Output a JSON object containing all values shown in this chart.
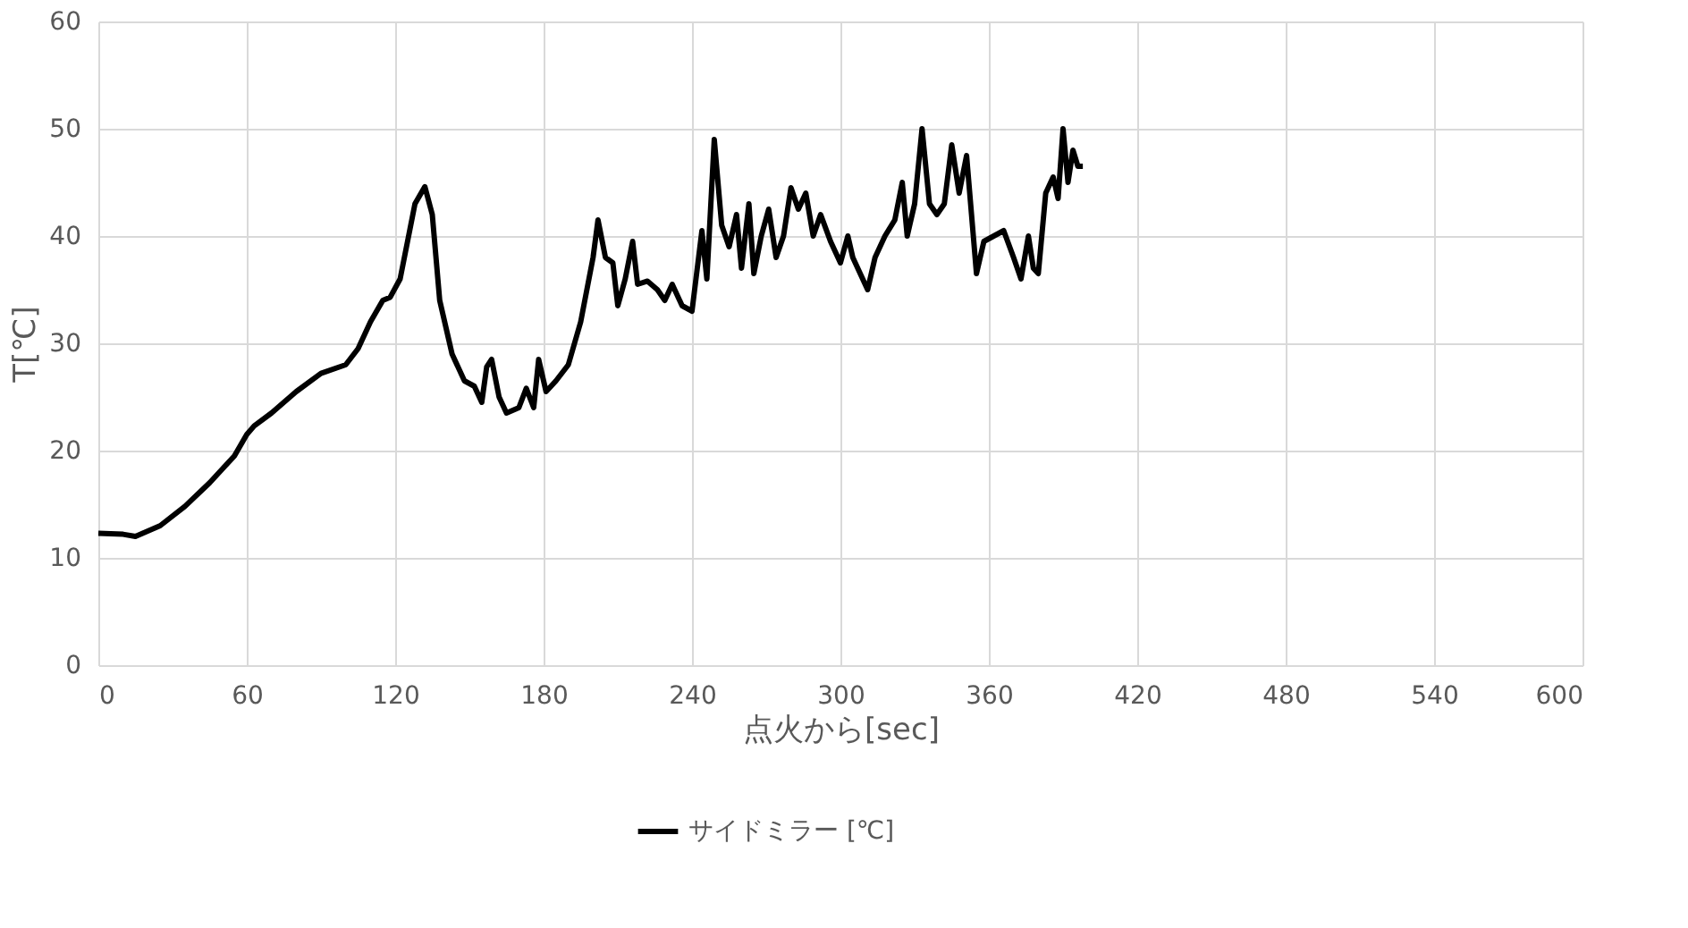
{
  "chart_data": {
    "type": "line",
    "xlabel": "点火から[sec]",
    "ylabel": "T[℃]",
    "xlim": [
      0,
      600
    ],
    "xticks": [
      0,
      60,
      120,
      180,
      240,
      300,
      360,
      420,
      480,
      540,
      600
    ],
    "ylim": [
      0,
      60
    ],
    "yticks": [
      0,
      10,
      20,
      30,
      40,
      50,
      60
    ],
    "grid": true,
    "legend": "bottom",
    "marker": "none",
    "line_style": "solid",
    "series": [
      {
        "name": "サイドミラー [℃]",
        "color": "#000000",
        "x": [
          0,
          10,
          15,
          25,
          35,
          45,
          55,
          60,
          63,
          70,
          80,
          90,
          100,
          105,
          110,
          115,
          118,
          122,
          125,
          128,
          132,
          135,
          138,
          143,
          148,
          152,
          155,
          157,
          159,
          162,
          165,
          170,
          173,
          176,
          178,
          181,
          185,
          190,
          195,
          200,
          202,
          205,
          208,
          210,
          213,
          216,
          218,
          222,
          226,
          229,
          232,
          236,
          240,
          244,
          246,
          249,
          252,
          255,
          258,
          260,
          263,
          265,
          268,
          271,
          274,
          277,
          280,
          283,
          286,
          289,
          292,
          296,
          300,
          303,
          305,
          308,
          311,
          314,
          318,
          322,
          325,
          327,
          330,
          333,
          336,
          339,
          342,
          345,
          348,
          351,
          353,
          355,
          358,
          362,
          366,
          370,
          373,
          376,
          378,
          380,
          383,
          386,
          388,
          390,
          392,
          394,
          396,
          398
        ],
        "values": [
          12.3,
          12.2,
          12.0,
          13,
          14.8,
          17,
          19.5,
          21.5,
          22.3,
          23.5,
          25.5,
          27.2,
          28,
          29.5,
          32,
          34,
          34.3,
          36,
          39.5,
          43,
          44.6,
          42,
          34,
          29,
          26.5,
          26,
          24.5,
          27.8,
          28.5,
          25,
          23.5,
          24,
          25.8,
          24,
          28.5,
          25.5,
          26.5,
          28,
          32,
          38,
          41.5,
          38,
          37.5,
          33.5,
          36,
          39.5,
          35.5,
          35.8,
          35,
          34,
          35.5,
          33.5,
          33,
          40.5,
          36,
          49,
          41,
          39,
          42,
          37,
          43,
          36.5,
          40,
          42.5,
          38,
          40,
          44.5,
          42.5,
          44,
          40,
          42,
          39.5,
          37.5,
          40,
          38,
          36.5,
          35,
          38,
          40,
          41.5,
          45,
          40,
          43,
          50,
          43,
          42,
          43,
          48.5,
          44,
          47.5,
          42,
          36.5,
          39.5,
          40,
          40.5,
          38,
          36,
          40,
          37,
          36.5,
          44,
          45.5,
          43.5,
          50,
          45,
          48,
          46.5,
          46.5
        ]
      }
    ]
  }
}
